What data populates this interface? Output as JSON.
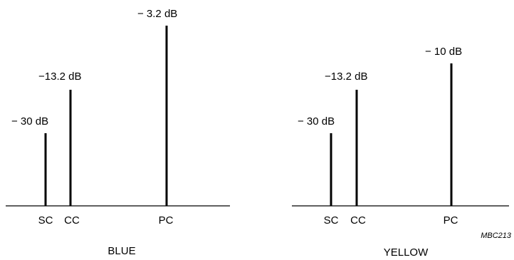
{
  "figure_code": "MBC213",
  "panels": [
    {
      "caption": "BLUE",
      "carriers": [
        {
          "axis_label": "SC",
          "level_label": "− 30 dB",
          "level_db": -30
        },
        {
          "axis_label": "CC",
          "level_label": "−13.2 dB",
          "level_db": -13.2
        },
        {
          "axis_label": "PC",
          "level_label": "− 3.2 dB",
          "level_db": -3.2
        }
      ]
    },
    {
      "caption": "YELLOW",
      "carriers": [
        {
          "axis_label": "SC",
          "level_label": "− 30 dB",
          "level_db": -30
        },
        {
          "axis_label": "CC",
          "level_label": "−13.2 dB",
          "level_db": -13.2
        },
        {
          "axis_label": "PC",
          "level_label": "− 10 dB",
          "level_db": -10
        }
      ]
    }
  ]
}
